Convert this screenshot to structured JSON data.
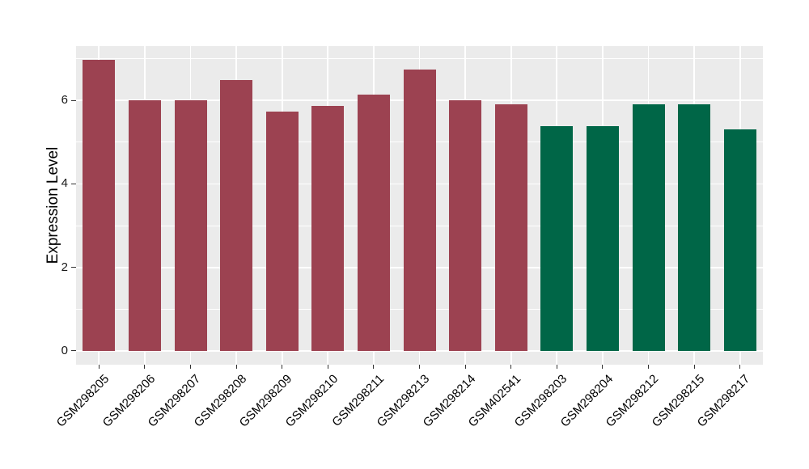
{
  "chart_data": {
    "type": "bar",
    "title": "",
    "xlabel": "",
    "ylabel": "Expression Level",
    "categories": [
      "GSM298205",
      "GSM298206",
      "GSM298207",
      "GSM298208",
      "GSM298209",
      "GSM298210",
      "GSM298211",
      "GSM298213",
      "GSM298214",
      "GSM402541",
      "GSM298203",
      "GSM298204",
      "GSM298212",
      "GSM298215",
      "GSM298217"
    ],
    "values": [
      6.97,
      6.0,
      6.0,
      6.49,
      5.73,
      5.86,
      6.14,
      6.73,
      6.0,
      5.9,
      5.38,
      5.38,
      5.9,
      5.9,
      5.31
    ],
    "groups": [
      "group1",
      "group1",
      "group1",
      "group1",
      "group1",
      "group1",
      "group1",
      "group1",
      "group1",
      "group1",
      "group2",
      "group2",
      "group2",
      "group2",
      "group2"
    ],
    "group_colors": {
      "group1": "#9C4251",
      "group2": "#006647"
    },
    "yticks": [
      0,
      2,
      4,
      6
    ],
    "ytick_labels": [
      "0",
      "2",
      "4",
      "6"
    ],
    "minor_yticks": [
      1,
      3,
      5,
      7
    ],
    "ylim": [
      -0.33,
      7.3
    ],
    "grid": true,
    "legend_position": "none",
    "panel_bg": "#EBEBEB",
    "grid_color": "#FFFFFF",
    "axis_text_color": "#1a1a1a",
    "tick_mark_color": "#333333"
  }
}
